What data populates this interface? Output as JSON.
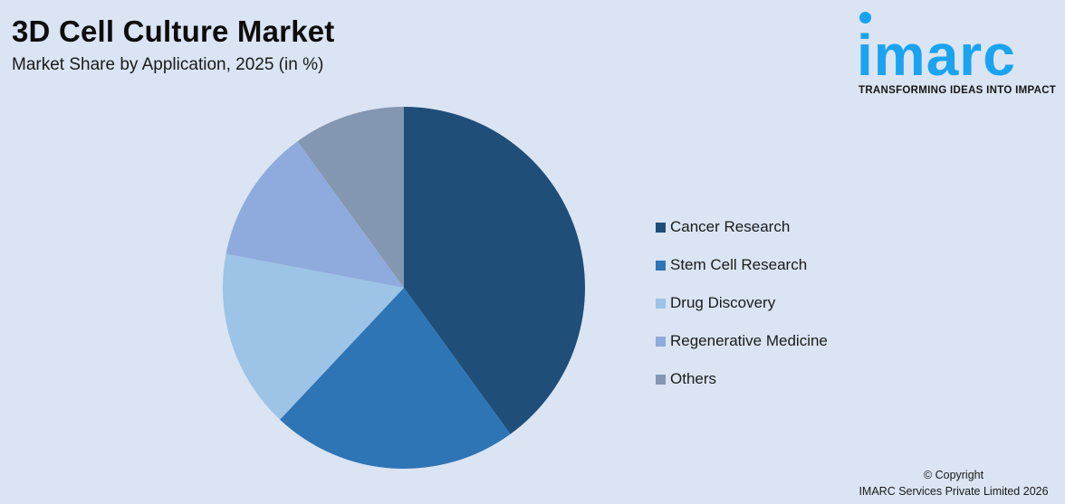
{
  "header": {
    "title": "3D Cell Culture Market",
    "subtitle": "Market Share by Application, 2025 (in %)"
  },
  "logo": {
    "word": "imarc",
    "tagline": "TRANSFORMING IDEAS INTO IMPACT",
    "color": "#1aa3f0"
  },
  "footer": {
    "line1": "© Copyright",
    "line2": "IMARC Services Private Limited 2026"
  },
  "chart_data": {
    "type": "pie",
    "title": "3D Cell Culture Market",
    "subtitle": "Market Share by Application, 2025 (in %)",
    "categories": [
      "Cancer Research",
      "Stem Cell Research",
      "Drug Discovery",
      "Regenerative Medicine",
      "Others"
    ],
    "values": [
      40,
      22,
      16,
      12,
      10
    ],
    "colors": [
      "#1f4e79",
      "#2e75b6",
      "#9dc3e6",
      "#8faadc",
      "#8497b0"
    ],
    "start_angle_deg": 0,
    "direction": "clockwise",
    "legend_position": "right",
    "data_labels": false
  },
  "legend": {
    "items": [
      {
        "label": "Cancer Research",
        "color": "#1f4e79"
      },
      {
        "label": "Stem Cell Research",
        "color": "#2e75b6"
      },
      {
        "label": "Drug Discovery",
        "color": "#9dc3e6"
      },
      {
        "label": "Regenerative Medicine",
        "color": "#8faadc"
      },
      {
        "label": "Others",
        "color": "#8497b0"
      }
    ]
  }
}
